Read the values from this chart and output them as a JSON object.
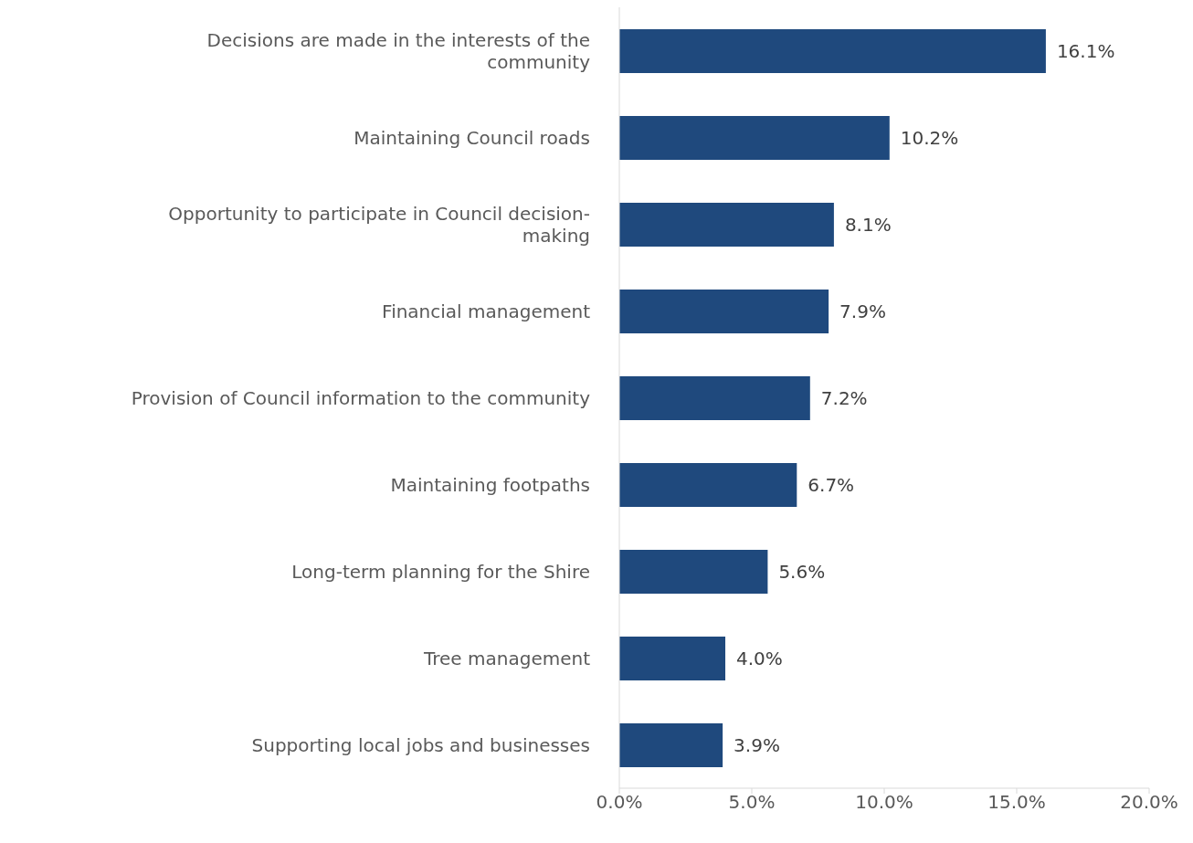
{
  "chart_data": {
    "type": "bar",
    "orientation": "horizontal",
    "categories": [
      "Decisions are made in the interests of the community",
      "Maintaining Council roads",
      "Opportunity to participate in Council decision-making",
      "Financial management",
      "Provision of Council information to the community",
      "Maintaining footpaths",
      "Long-term planning for the Shire",
      "Tree management",
      "Supporting local jobs and businesses"
    ],
    "values": [
      16.1,
      10.2,
      8.1,
      7.9,
      7.2,
      6.7,
      5.6,
      4.0,
      3.9
    ],
    "value_labels": [
      "16.1%",
      "10.2%",
      "8.1%",
      "7.9%",
      "7.2%",
      "6.7%",
      "5.6%",
      "4.0%",
      "3.9%"
    ],
    "color": "#1f497d",
    "xlim": [
      0,
      20
    ],
    "xticks": [
      {
        "value": 0,
        "label": "0.0%"
      },
      {
        "value": 5,
        "label": "5.0%"
      },
      {
        "value": 10,
        "label": "10.0%"
      },
      {
        "value": 15,
        "label": "15.0%"
      },
      {
        "value": 20,
        "label": "20.0%"
      }
    ],
    "grid": false,
    "legend": false
  }
}
